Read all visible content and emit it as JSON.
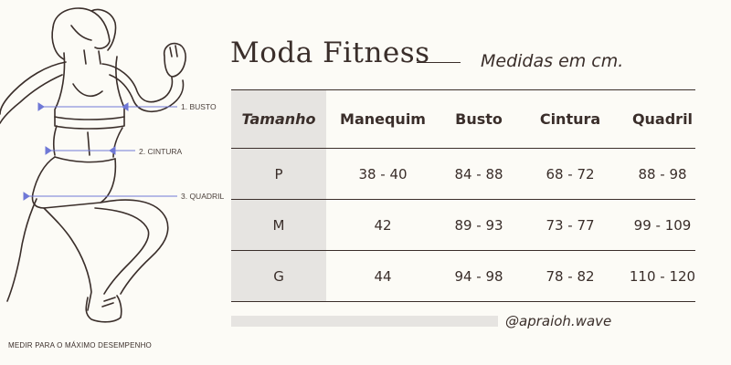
{
  "figure": {
    "labels": [
      "1. BUSTO",
      "2. CINTURA",
      "3. QUADRIL"
    ],
    "caption": "MEDIR PARA O MÁXIMO DESEMPENHO"
  },
  "title": "Moda Fitness",
  "subtitle": "Medidas em cm.",
  "table": {
    "headers": [
      "Tamanho",
      "Manequim",
      "Busto",
      "Cintura",
      "Quadril"
    ],
    "rows": [
      [
        "P",
        "38 - 40",
        "84 - 88",
        "68 - 72",
        "88 - 98"
      ],
      [
        "M",
        "42",
        "89 - 93",
        "73 - 77",
        "99 - 109"
      ],
      [
        "G",
        "44",
        "94 - 98",
        "78 - 82",
        "110 - 120"
      ]
    ]
  },
  "handle": "@apraioh.wave",
  "colors": {
    "background": "#fcfbf6",
    "text": "#3a2e2a",
    "shade": "#e6e4e1",
    "measure_line": "#6f78d6"
  }
}
